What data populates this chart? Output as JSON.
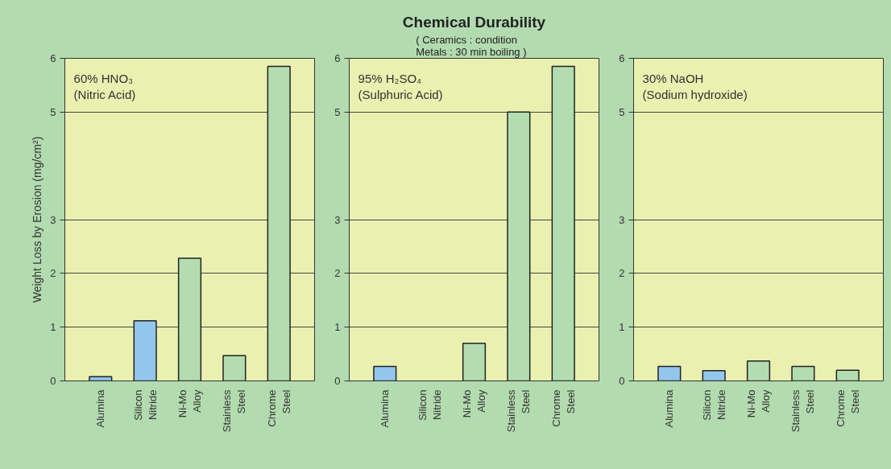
{
  "chart_data": [
    {
      "type": "bar",
      "ylabel": "Weight Loss by Erosion (mg/cm²)",
      "annotations": [
        "60%  HNO₃\n(Nitric Acid)"
      ],
      "categories": [
        "Alumina",
        "Silicon\nNitride",
        "Ni-Mo\nAlloy",
        "Stainless\nSteel",
        "Chrome\nSteel"
      ],
      "values": [
        0.08,
        1.12,
        2.28,
        0.47,
        5.85
      ],
      "colors": [
        "#93c6ec",
        "#93c6ec",
        "#b3ddb0",
        "#b3ddb0",
        "#b3ddb0"
      ],
      "ylim": [
        0,
        6
      ],
      "yticks": [
        0,
        1,
        2,
        3,
        5,
        6
      ],
      "grid": "y"
    },
    {
      "type": "bar",
      "title": "Chemical Durability",
      "subtitle": "( Ceramics : condition\n  Metals : 30 min boiling )",
      "annotations": [
        "95%  H₂SO₄\n(Sulphuric Acid)"
      ],
      "categories": [
        "Alumina",
        "Silicon\nNitride",
        "Ni-Mo\nAlloy",
        "Stainless\nSteel",
        "Chrome\nSteel"
      ],
      "values": [
        0.27,
        null,
        0.7,
        5,
        5.85
      ],
      "colors": [
        "#93c6ec",
        "#93c6ec",
        "#b3ddb0",
        "#b3ddb0",
        "#b3ddb0"
      ],
      "ylim": [
        0,
        6
      ],
      "yticks": [
        0,
        1,
        2,
        3,
        5,
        6
      ],
      "grid": "y"
    },
    {
      "type": "bar",
      "annotations": [
        "30%  NaOH\n(Sodium hydroxide)"
      ],
      "categories": [
        "Alumina",
        "Silicon\nNitride",
        "Ni-Mo\nAlloy",
        "Stainless\nSteel",
        "Chrome\nSteel"
      ],
      "values": [
        0.27,
        0.19,
        0.37,
        0.27,
        0.2
      ],
      "colors": [
        "#93c6ec",
        "#93c6ec",
        "#b3ddb0",
        "#b3ddb0",
        "#b3ddb0"
      ],
      "ylim": [
        0,
        6
      ],
      "yticks": [
        0,
        1,
        2,
        3,
        5,
        6
      ],
      "grid": "y"
    }
  ]
}
